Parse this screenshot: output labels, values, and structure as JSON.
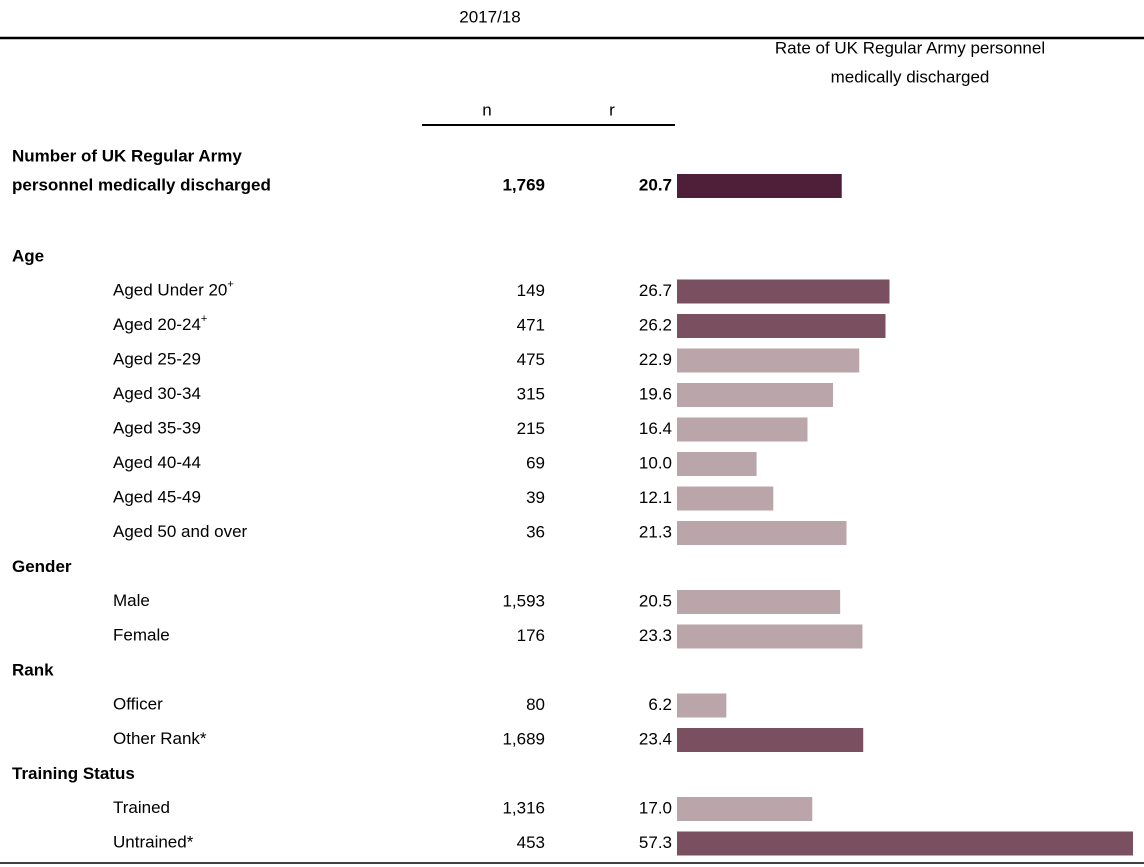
{
  "header": {
    "period": "2017/18",
    "n": "n",
    "r": "r",
    "rate_title": [
      "Rate of UK Regular Army personnel",
      "medically discharged"
    ]
  },
  "total": {
    "label": [
      "Number of UK Regular Army",
      "personnel medically discharged"
    ],
    "n": "1,769",
    "r": {
      "value": 20.7,
      "label": "20.7"
    }
  },
  "groups": [
    {
      "title": "Age",
      "rows": [
        {
          "label": "Aged Under 20",
          "sup": "+",
          "n": "149",
          "r": {
            "value": 26.7,
            "label": "26.7"
          },
          "highlight": true
        },
        {
          "label": "Aged 20-24",
          "sup": "+",
          "n": "471",
          "r": {
            "value": 26.2,
            "label": "26.2"
          },
          "highlight": true
        },
        {
          "label": "Aged 25-29",
          "n": "475",
          "r": {
            "value": 22.9,
            "label": "22.9"
          },
          "highlight": false
        },
        {
          "label": "Aged 30-34",
          "n": "315",
          "r": {
            "value": 19.6,
            "label": "19.6"
          },
          "highlight": false
        },
        {
          "label": "Aged 35-39",
          "n": "215",
          "r": {
            "value": 16.4,
            "label": "16.4"
          },
          "highlight": false
        },
        {
          "label": "Aged 40-44",
          "n": "69",
          "r": {
            "value": 10.0,
            "label": "10.0"
          },
          "highlight": false
        },
        {
          "label": "Aged 45-49",
          "n": "39",
          "r": {
            "value": 12.1,
            "label": "12.1"
          },
          "highlight": false
        },
        {
          "label": "Aged 50 and over",
          "n": "36",
          "r": {
            "value": 21.3,
            "label": "21.3"
          },
          "highlight": false
        }
      ]
    },
    {
      "title": "Gender",
      "rows": [
        {
          "label": "Male",
          "n": "1,593",
          "r": {
            "value": 20.5,
            "label": "20.5"
          },
          "highlight": false
        },
        {
          "label": "Female",
          "n": "176",
          "r": {
            "value": 23.3,
            "label": "23.3"
          },
          "highlight": false
        }
      ]
    },
    {
      "title": "Rank",
      "rows": [
        {
          "label": "Officer",
          "n": "80",
          "r": {
            "value": 6.2,
            "label": "6.2"
          },
          "highlight": false
        },
        {
          "label": "Other Rank*",
          "n": "1,689",
          "r": {
            "value": 23.4,
            "label": "23.4"
          },
          "highlight": true
        }
      ]
    },
    {
      "title": "Training Status",
      "rows": [
        {
          "label": "Trained",
          "n": "1,316",
          "r": {
            "value": 17.0,
            "label": "17.0"
          },
          "highlight": false
        },
        {
          "label": "Untrained*",
          "n": "453",
          "r": {
            "value": 57.3,
            "label": "57.3"
          },
          "highlight": true
        }
      ]
    }
  ],
  "colors": {
    "total": "#4f1f3a",
    "highlight": "#7a5060",
    "normal": "#baa5aa"
  }
}
